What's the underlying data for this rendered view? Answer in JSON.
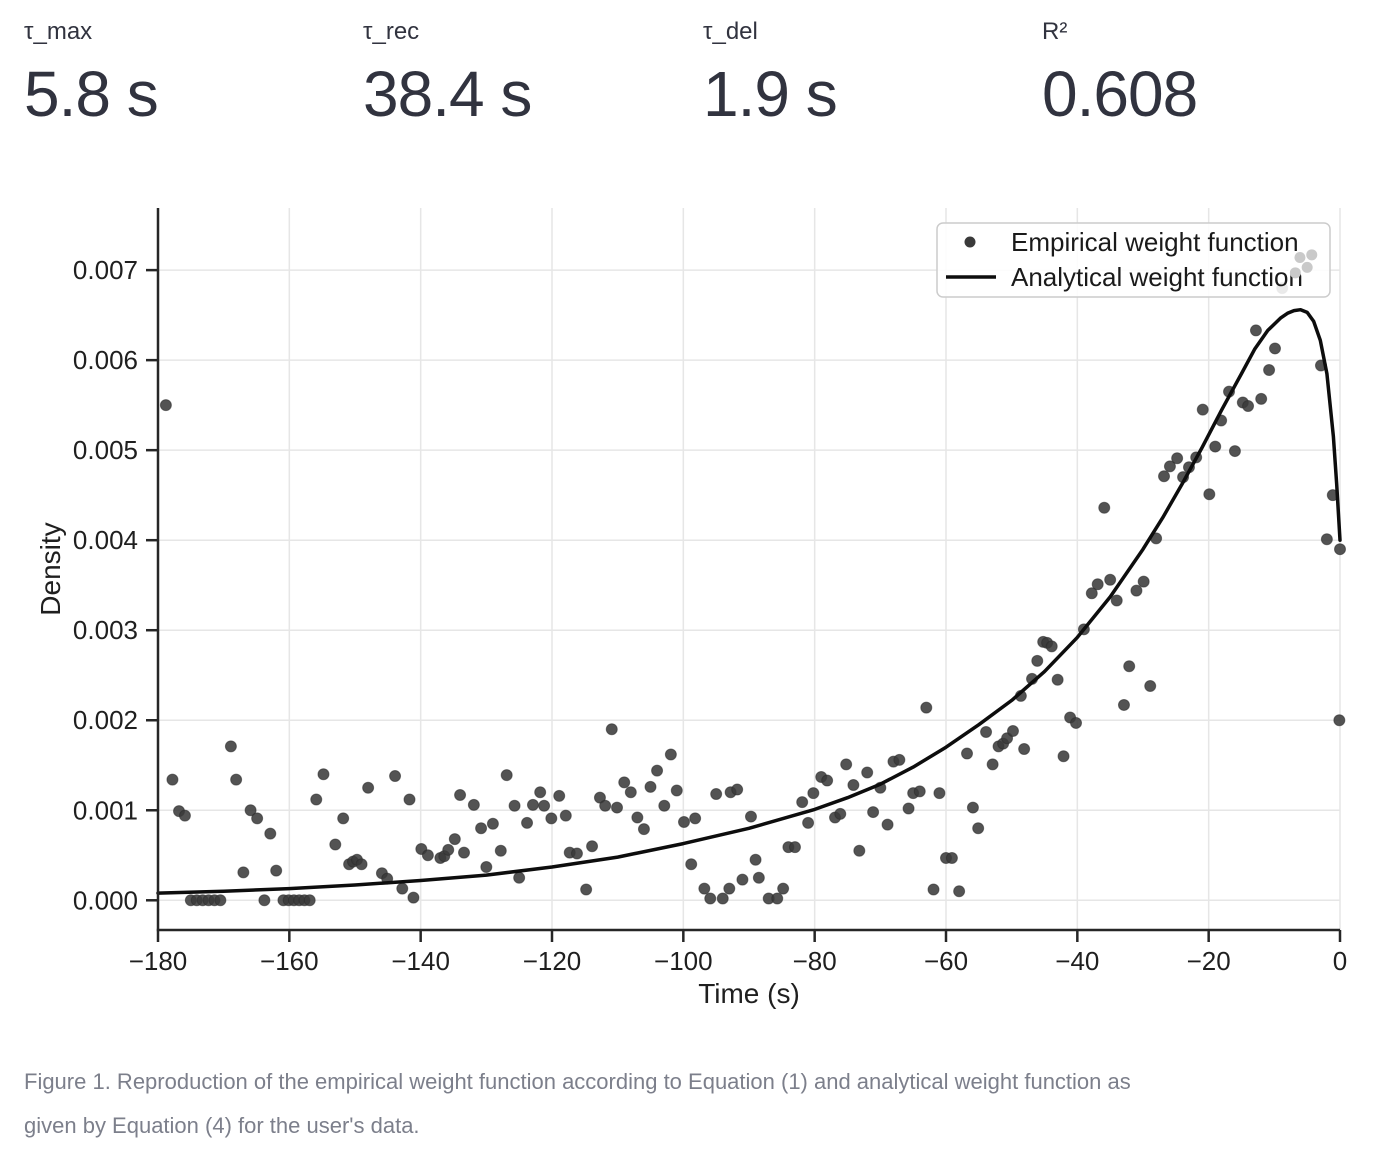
{
  "metrics": [
    {
      "label": "τ_max",
      "value": "5.8 s"
    },
    {
      "label": "τ_rec",
      "value": "38.4 s"
    },
    {
      "label": "τ_del",
      "value": "1.9 s"
    },
    {
      "label": "R²",
      "value": "0.608"
    }
  ],
  "caption": {
    "line1": "Figure 1. Reproduction of the empirical weight function according to Equation (1) and analytical weight function as",
    "line2": "given by Equation (4) for the user's data."
  },
  "colors": {
    "metric_text": "#31333F",
    "caption_text": "#7c7f8b",
    "grid": "#e6e6e6",
    "spine": "#262626",
    "tick_text": "#1f1f1f",
    "dot": "#3a3a3a",
    "dot_faded": "#c9c9c9",
    "curve": "#0d0d0d",
    "legend_border": "#cccccc",
    "legend_bg": "rgba(255,255,255,0.88)"
  },
  "chart_data": {
    "type": "scatter",
    "title": "",
    "xlabel": "Time (s)",
    "ylabel": "Density",
    "xlim": [
      -180,
      0
    ],
    "ylim": [
      -0.00033,
      0.00769
    ],
    "grid": true,
    "legend_position": "upper right",
    "xticks": [
      -180,
      -160,
      -140,
      -120,
      -100,
      -80,
      -60,
      -40,
      -20,
      0
    ],
    "xtick_labels": [
      "−180",
      "−160",
      "−140",
      "−120",
      "−100",
      "−80",
      "−60",
      "−40",
      "−20",
      "0"
    ],
    "yticks": [
      0.0,
      0.001,
      0.002,
      0.003,
      0.004,
      0.005,
      0.006,
      0.007
    ],
    "ytick_labels": [
      "0.000",
      "0.001",
      "0.002",
      "0.003",
      "0.004",
      "0.005",
      "0.006",
      "0.007"
    ],
    "legend": [
      {
        "label": "Empirical weight function",
        "marker": "point"
      },
      {
        "label": "Analytical weight function",
        "marker": "line"
      }
    ],
    "series": [
      {
        "name": "Empirical weight function",
        "type": "scatter",
        "points": [
          [
            -178.8,
            0.0055
          ],
          [
            -177.8,
            0.00134
          ],
          [
            -176.8,
            0.00099
          ],
          [
            -175.9,
            0.00094
          ],
          [
            -175.0,
            0.0
          ],
          [
            -174.1,
            0.0
          ],
          [
            -173.2,
            0.0
          ],
          [
            -172.3,
            0.0
          ],
          [
            -171.4,
            0.0
          ],
          [
            -170.5,
            0.0
          ],
          [
            -168.9,
            0.00171
          ],
          [
            -168.1,
            0.00134
          ],
          [
            -167.0,
            0.00031
          ],
          [
            -165.9,
            0.001
          ],
          [
            -164.9,
            0.00091
          ],
          [
            -163.8,
            0.0
          ],
          [
            -162.9,
            0.00074
          ],
          [
            -162.0,
            0.00033
          ],
          [
            -160.9,
            0.0
          ],
          [
            -160.1,
            0.0
          ],
          [
            -159.3,
            0.0
          ],
          [
            -158.5,
            0.0
          ],
          [
            -157.7,
            0.0
          ],
          [
            -156.9,
            0.0
          ],
          [
            -155.9,
            0.00112
          ],
          [
            -154.8,
            0.0014
          ],
          [
            -153.0,
            0.00062
          ],
          [
            -151.8,
            0.00091
          ],
          [
            -150.9,
            0.0004
          ],
          [
            -150.3,
            0.00043
          ],
          [
            -149.7,
            0.00045
          ],
          [
            -149.0,
            0.0004
          ],
          [
            -148.0,
            0.00125
          ],
          [
            -145.9,
            0.0003
          ],
          [
            -145.1,
            0.00024
          ],
          [
            -143.9,
            0.00138
          ],
          [
            -142.8,
            0.00013
          ],
          [
            -141.7,
            0.00112
          ],
          [
            -141.1,
            3e-05
          ],
          [
            -139.9,
            0.00057
          ],
          [
            -138.9,
            0.0005
          ],
          [
            -137.0,
            0.00047
          ],
          [
            -136.4,
            0.00049
          ],
          [
            -135.8,
            0.00056
          ],
          [
            -134.8,
            0.00068
          ],
          [
            -134.0,
            0.00117
          ],
          [
            -133.4,
            0.00053
          ],
          [
            -131.9,
            0.00106
          ],
          [
            -130.8,
            0.0008
          ],
          [
            -130.0,
            0.00037
          ],
          [
            -129.0,
            0.00085
          ],
          [
            -127.8,
            0.00055
          ],
          [
            -126.9,
            0.00139
          ],
          [
            -125.7,
            0.00105
          ],
          [
            -125.0,
            0.00025
          ],
          [
            -123.8,
            0.00086
          ],
          [
            -122.9,
            0.00106
          ],
          [
            -121.8,
            0.0012
          ],
          [
            -121.2,
            0.00105
          ],
          [
            -120.1,
            0.00091
          ],
          [
            -118.9,
            0.00116
          ],
          [
            -117.9,
            0.00094
          ],
          [
            -117.3,
            0.00053
          ],
          [
            -116.2,
            0.00052
          ],
          [
            -114.8,
            0.00012
          ],
          [
            -113.9,
            0.0006
          ],
          [
            -112.7,
            0.00114
          ],
          [
            -111.9,
            0.00105
          ],
          [
            -110.9,
            0.0019
          ],
          [
            -110.1,
            0.00103
          ],
          [
            -109.0,
            0.00131
          ],
          [
            -108.0,
            0.0012
          ],
          [
            -107.0,
            0.00092
          ],
          [
            -106.0,
            0.00079
          ],
          [
            -105.0,
            0.00126
          ],
          [
            -104.0,
            0.00144
          ],
          [
            -102.9,
            0.00105
          ],
          [
            -101.9,
            0.00162
          ],
          [
            -101.0,
            0.00122
          ],
          [
            -99.9,
            0.00087
          ],
          [
            -98.8,
            0.0004
          ],
          [
            -98.2,
            0.00091
          ],
          [
            -96.8,
            0.00013
          ],
          [
            -95.9,
            2e-05
          ],
          [
            -95.0,
            0.00118
          ],
          [
            -94.0,
            2e-05
          ],
          [
            -93.0,
            0.00013
          ],
          [
            -92.8,
            0.0012
          ],
          [
            -91.8,
            0.00123
          ],
          [
            -91.0,
            0.00023
          ],
          [
            -89.7,
            0.00093
          ],
          [
            -89.0,
            0.00045
          ],
          [
            -88.5,
            0.00025
          ],
          [
            -87.0,
            2e-05
          ],
          [
            -85.7,
            2e-05
          ],
          [
            -84.8,
            0.00013
          ],
          [
            -84.0,
            0.00059
          ],
          [
            -83.0,
            0.00059
          ],
          [
            -81.9,
            0.00109
          ],
          [
            -81.0,
            0.00086
          ],
          [
            -80.2,
            0.00119
          ],
          [
            -79.0,
            0.00137
          ],
          [
            -78.1,
            0.00133
          ],
          [
            -76.9,
            0.00092
          ],
          [
            -76.1,
            0.00096
          ],
          [
            -75.2,
            0.00151
          ],
          [
            -74.1,
            0.00128
          ],
          [
            -73.2,
            0.00055
          ],
          [
            -72.0,
            0.00142
          ],
          [
            -71.1,
            0.00098
          ],
          [
            -70.0,
            0.00125
          ],
          [
            -68.9,
            0.00084
          ],
          [
            -68.0,
            0.00154
          ],
          [
            -67.1,
            0.00156
          ],
          [
            -65.7,
            0.00102
          ],
          [
            -65.0,
            0.00119
          ],
          [
            -64.0,
            0.00121
          ],
          [
            -63.0,
            0.00214
          ],
          [
            -61.9,
            0.00012
          ],
          [
            -61.0,
            0.00119
          ],
          [
            -60.0,
            0.00047
          ],
          [
            -59.1,
            0.00047
          ],
          [
            -58.0,
            0.0001
          ],
          [
            -56.8,
            0.00163
          ],
          [
            -55.9,
            0.00103
          ],
          [
            -55.1,
            0.0008
          ],
          [
            -53.9,
            0.00187
          ],
          [
            -52.9,
            0.00151
          ],
          [
            -52.0,
            0.00171
          ],
          [
            -51.3,
            0.00174
          ],
          [
            -50.7,
            0.0018
          ],
          [
            -49.8,
            0.00188
          ],
          [
            -48.6,
            0.00227
          ],
          [
            -48.1,
            0.00168
          ],
          [
            -46.9,
            0.00246
          ],
          [
            -46.1,
            0.00266
          ],
          [
            -45.2,
            0.00287
          ],
          [
            -44.6,
            0.00286
          ],
          [
            -43.9,
            0.00282
          ],
          [
            -43.0,
            0.00245
          ],
          [
            -42.1,
            0.0016
          ],
          [
            -41.1,
            0.00203
          ],
          [
            -40.2,
            0.00197
          ],
          [
            -39.0,
            0.00301
          ],
          [
            -37.8,
            0.00341
          ],
          [
            -36.9,
            0.00351
          ],
          [
            -35.9,
            0.00436
          ],
          [
            -35.0,
            0.00356
          ],
          [
            -34.0,
            0.00333
          ],
          [
            -32.9,
            0.00217
          ],
          [
            -32.1,
            0.0026
          ],
          [
            -31.0,
            0.00344
          ],
          [
            -29.9,
            0.00354
          ],
          [
            -28.9,
            0.00238
          ],
          [
            -28.0,
            0.00402
          ],
          [
            -26.8,
            0.00471
          ],
          [
            -25.9,
            0.00482
          ],
          [
            -24.8,
            0.00491
          ],
          [
            -23.9,
            0.0047
          ],
          [
            -23.0,
            0.00481
          ],
          [
            -21.9,
            0.00492
          ],
          [
            -20.9,
            0.00545
          ],
          [
            -19.9,
            0.00451
          ],
          [
            -19.0,
            0.00504
          ],
          [
            -18.1,
            0.00533
          ],
          [
            -16.9,
            0.00565
          ],
          [
            -16.0,
            0.00499
          ],
          [
            -14.8,
            0.00553
          ],
          [
            -14.0,
            0.00549
          ],
          [
            -12.8,
            0.00633
          ],
          [
            -12.0,
            0.00557
          ],
          [
            -10.8,
            0.00589
          ],
          [
            -9.9,
            0.00613
          ],
          [
            -8.8,
            0.0068
          ],
          [
            -2.9,
            0.00594
          ],
          [
            -2.0,
            0.00401
          ],
          [
            -1.1,
            0.0045
          ],
          [
            -0.1,
            0.002
          ],
          [
            0.0,
            0.0039
          ]
        ]
      },
      {
        "name": "Empirical weight function (occluded by legend box)",
        "type": "scatter_faded",
        "points": [
          [
            -6.8,
            0.00697
          ],
          [
            -6.1,
            0.00714
          ],
          [
            -5.0,
            0.00703
          ],
          [
            -4.3,
            0.00717
          ]
        ]
      },
      {
        "name": "Analytical weight function",
        "type": "line",
        "points": [
          [
            -180,
            8e-05
          ],
          [
            -170,
            0.0001
          ],
          [
            -160,
            0.00013
          ],
          [
            -150,
            0.00017
          ],
          [
            -140,
            0.00022
          ],
          [
            -130,
            0.00028
          ],
          [
            -120,
            0.00037
          ],
          [
            -110,
            0.00048
          ],
          [
            -100,
            0.00063
          ],
          [
            -90,
            0.0008
          ],
          [
            -80,
            0.00101
          ],
          [
            -75,
            0.00114
          ],
          [
            -70,
            0.00129
          ],
          [
            -65,
            0.00148
          ],
          [
            -60,
            0.0017
          ],
          [
            -55,
            0.00195
          ],
          [
            -50,
            0.00222
          ],
          [
            -45,
            0.00254
          ],
          [
            -40,
            0.00292
          ],
          [
            -35,
            0.00337
          ],
          [
            -30,
            0.0039
          ],
          [
            -27,
            0.00425
          ],
          [
            -24,
            0.00463
          ],
          [
            -21,
            0.00503
          ],
          [
            -18,
            0.00545
          ],
          [
            -15,
            0.00585
          ],
          [
            -13,
            0.00612
          ],
          [
            -11,
            0.00633
          ],
          [
            -9,
            0.00647
          ],
          [
            -8,
            0.00652
          ],
          [
            -7,
            0.00655
          ],
          [
            -6,
            0.00656
          ],
          [
            -5,
            0.00653
          ],
          [
            -4,
            0.00643
          ],
          [
            -3,
            0.00622
          ],
          [
            -2,
            0.00585
          ],
          [
            -1,
            0.00515
          ],
          [
            -0.5,
            0.00462
          ],
          [
            0,
            0.004
          ]
        ]
      }
    ]
  }
}
